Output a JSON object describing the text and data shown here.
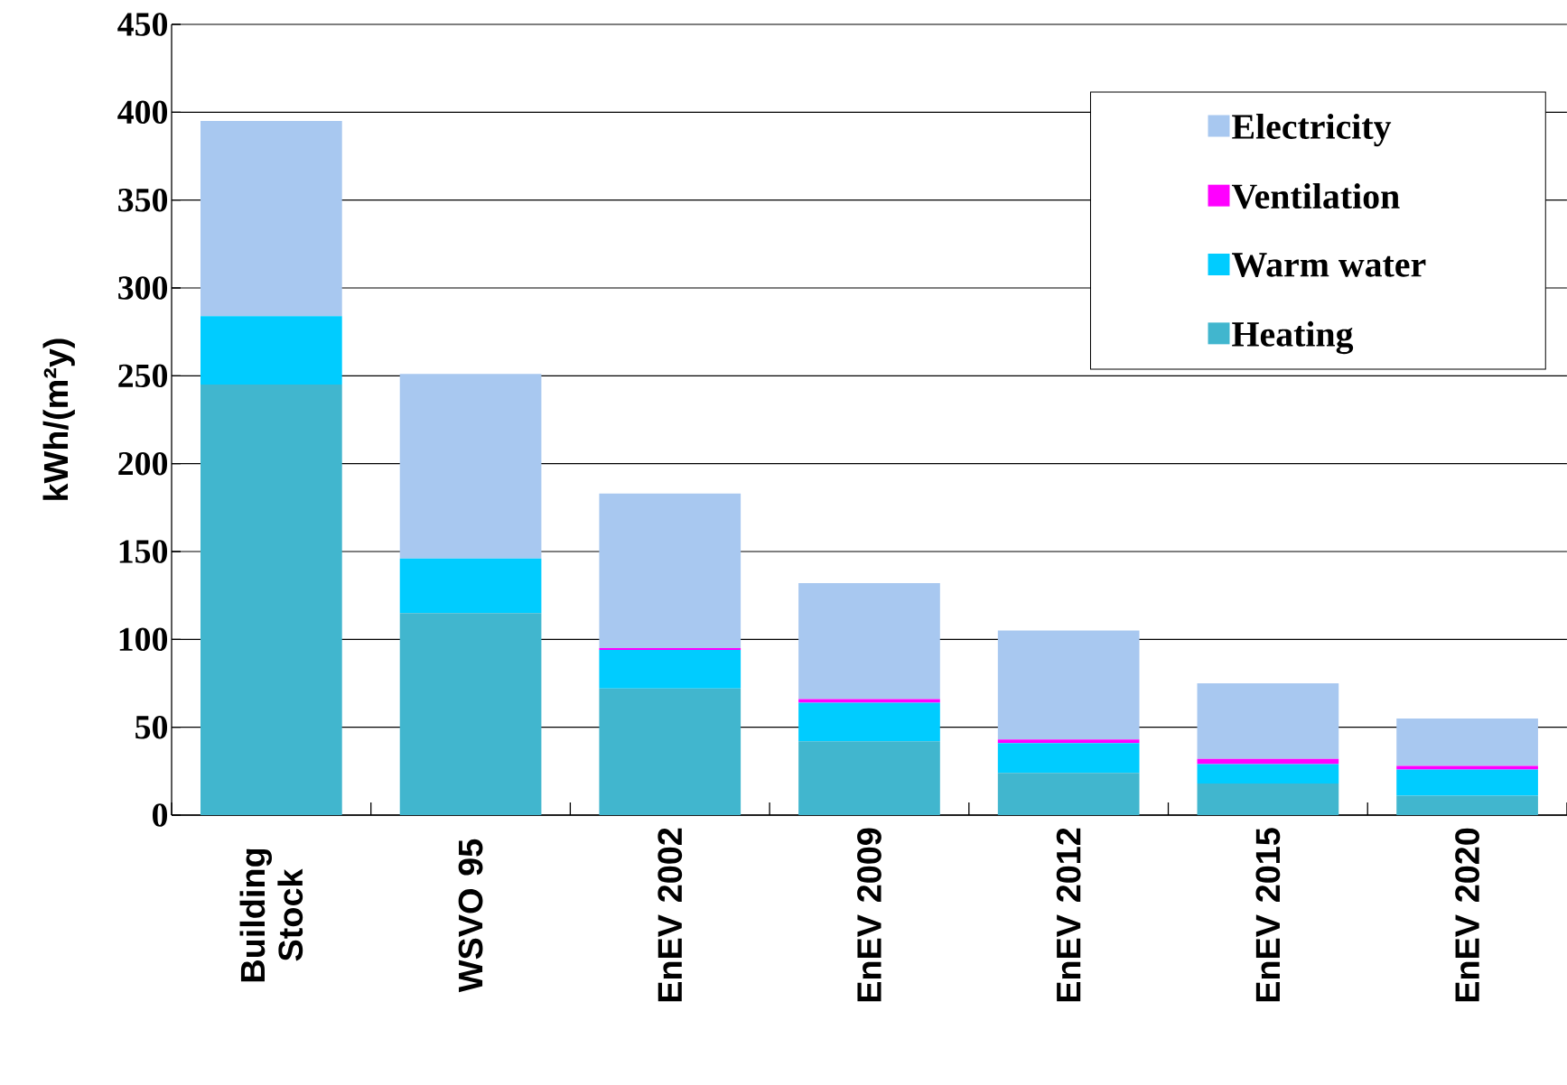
{
  "chart_data": {
    "type": "bar",
    "stacked": true,
    "ylabel": "kWh/(m²y)",
    "categories": [
      "Building Stock",
      "WSVO 95",
      "EnEV 2002",
      "EnEV 2009",
      "EnEV 2012",
      "EnEV 2015",
      "EnEV 2020"
    ],
    "series": [
      {
        "name": "Heating",
        "color": "#41b6ce",
        "values": [
          245,
          115,
          72,
          42,
          24,
          18,
          11
        ]
      },
      {
        "name": "Warm water",
        "color": "#00ccff",
        "values": [
          39,
          31,
          22,
          22,
          17,
          11,
          15
        ]
      },
      {
        "name": "Ventilation",
        "color": "#ff00ff",
        "values": [
          0,
          0,
          1,
          2,
          2,
          3,
          2
        ]
      },
      {
        "name": "Electricity",
        "color": "#a8c8f0",
        "values": [
          111,
          105,
          88,
          66,
          62,
          43,
          27
        ]
      }
    ],
    "ylim": [
      0,
      450
    ],
    "yticks": [
      0,
      50,
      100,
      150,
      200,
      250,
      300,
      350,
      400,
      450
    ],
    "grid": "y",
    "legend": "top right"
  }
}
